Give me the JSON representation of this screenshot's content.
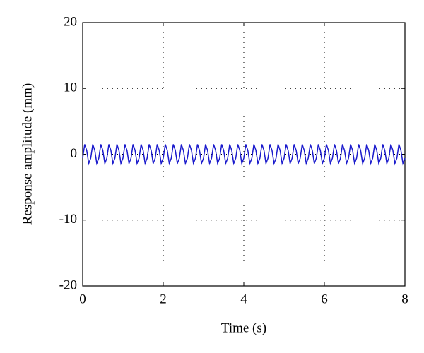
{
  "chart_data": {
    "type": "line",
    "xlabel": "Time (s)",
    "ylabel": "Response amplitude (mm)",
    "xlim": [
      0,
      8
    ],
    "xticks": [
      0,
      2,
      4,
      6,
      8
    ],
    "ylim": [
      -20,
      20
    ],
    "yticks": [
      -20,
      -10,
      0,
      10,
      20
    ],
    "grid": true,
    "series": [
      {
        "color": "#1a1acc",
        "x": [
          0,
          0.05,
          0.1,
          0.15,
          0.2,
          0.25,
          0.3,
          0.35,
          0.4,
          0.45,
          0.5,
          0.55,
          0.6,
          0.65,
          0.7,
          0.75,
          0.8,
          0.85,
          0.9,
          0.95,
          1,
          1.05,
          1.1,
          1.15,
          1.2,
          1.25,
          1.3,
          1.35,
          1.4,
          1.45,
          1.5,
          1.55,
          1.6,
          1.65,
          1.7,
          1.75,
          1.8,
          1.85,
          1.9,
          1.95,
          2,
          2.05,
          2.1,
          2.15,
          2.2,
          2.25,
          2.3,
          2.35,
          2.4,
          2.45,
          2.5,
          2.55,
          2.6,
          2.65,
          2.7,
          2.75,
          2.8,
          2.85,
          2.9,
          2.95,
          3,
          3.05,
          3.1,
          3.15,
          3.2,
          3.25,
          3.3,
          3.35,
          3.4,
          3.45,
          3.5,
          3.55,
          3.6,
          3.65,
          3.7,
          3.75,
          3.8,
          3.85,
          3.9,
          3.95,
          4,
          4.05,
          4.1,
          4.15,
          4.2,
          4.25,
          4.3,
          4.35,
          4.4,
          4.45,
          4.5,
          4.55,
          4.6,
          4.65,
          4.7,
          4.75,
          4.8,
          4.85,
          4.9,
          4.95,
          5,
          5.05,
          5.1,
          5.15,
          5.2,
          5.25,
          5.3,
          5.35,
          5.4,
          5.45,
          5.5,
          5.55,
          5.6,
          5.65,
          5.7,
          5.75,
          5.8,
          5.85,
          5.9,
          5.95,
          6,
          6.05,
          6.1,
          6.15,
          6.2,
          6.25,
          6.3,
          6.35,
          6.4,
          6.45,
          6.5,
          6.55,
          6.6,
          6.65,
          6.7,
          6.75,
          6.8,
          6.85,
          6.9,
          6.95,
          7,
          7.05,
          7.1,
          7.15,
          7.2,
          7.25,
          7.3,
          7.35,
          7.4,
          7.45,
          7.5,
          7.55,
          7.6,
          7.65,
          7.7,
          7.75,
          7.8,
          7.85,
          7.9,
          7.95,
          8
        ],
        "values": [
          -0.6,
          1.5,
          0.6,
          -1.4,
          -0.6,
          1.5,
          0.6,
          -1.4,
          -0.6,
          1.5,
          0.6,
          -1.4,
          -0.6,
          1.5,
          0.6,
          -1.4,
          -0.6,
          1.5,
          0.6,
          -1.4,
          -0.6,
          1.5,
          0.6,
          -1.4,
          -0.6,
          1.5,
          0.6,
          -1.4,
          -0.6,
          1.5,
          0.6,
          -1.4,
          -0.6,
          1.5,
          0.6,
          -1.4,
          -0.6,
          1.5,
          0.6,
          -1.4,
          -0.6,
          1.5,
          0.6,
          -1.4,
          -0.6,
          1.5,
          0.6,
          -1.4,
          -0.6,
          1.5,
          0.6,
          -1.4,
          -0.6,
          1.5,
          0.6,
          -1.4,
          -0.6,
          1.5,
          0.6,
          -1.4,
          -0.6,
          1.5,
          0.6,
          -1.4,
          -0.6,
          1.5,
          0.6,
          -1.4,
          -0.6,
          1.5,
          0.6,
          -1.4,
          -0.6,
          1.5,
          0.6,
          -1.4,
          -0.6,
          1.5,
          0.6,
          -1.4,
          -0.6,
          1.5,
          0.6,
          -1.4,
          -0.6,
          1.5,
          0.6,
          -1.4,
          -0.6,
          1.5,
          0.6,
          -1.4,
          -0.6,
          1.5,
          0.6,
          -1.4,
          -0.6,
          1.5,
          0.6,
          -1.4,
          -0.6,
          1.5,
          0.6,
          -1.4,
          -0.6,
          1.5,
          0.6,
          -1.4,
          -0.6,
          1.5,
          0.6,
          -1.4,
          -0.6,
          1.5,
          0.6,
          -1.4,
          -0.6,
          1.5,
          0.6,
          -1.4,
          -0.6,
          1.5,
          0.6,
          -1.4,
          -0.6,
          1.5,
          0.6,
          -1.4,
          -0.6,
          1.5,
          0.6,
          -1.4,
          -0.6,
          1.5,
          0.6,
          -1.4,
          -0.6,
          1.5,
          0.6,
          -1.4,
          -0.6,
          1.5,
          0.6,
          -1.4,
          -0.6,
          1.5,
          0.6,
          -1.4,
          -0.6,
          1.5,
          0.6,
          -1.4,
          -0.6,
          1.5,
          0.6,
          -1.4,
          -0.6,
          1.5,
          0.6,
          -1.4,
          -0.6
        ]
      }
    ]
  }
}
